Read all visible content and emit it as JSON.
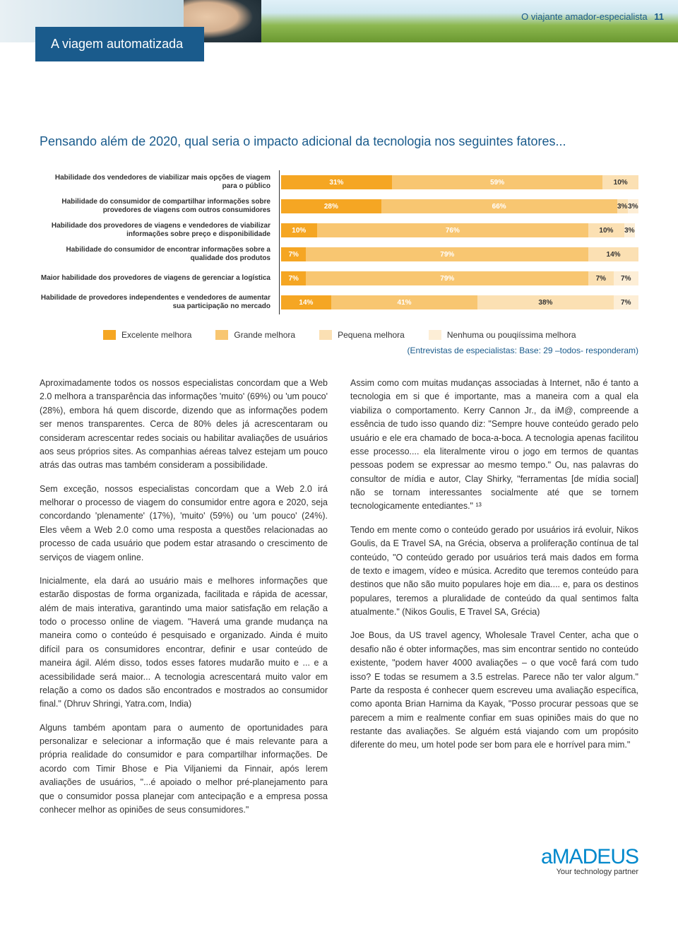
{
  "header": {
    "tab": "A viagem automatizada",
    "right_label": "O viajante amador-especialista",
    "page_number": "11"
  },
  "chart": {
    "title": "Pensando além de 2020, qual seria o impacto adicional da tecnologia nos seguintes fatores...",
    "type": "stacked-bar-horizontal",
    "colors": {
      "excellent": "#f5a623",
      "large": "#f8c671",
      "small": "#fbe0b3",
      "none": "#fdeed6"
    },
    "background_color": "#ffffff",
    "label_fontsize": 10,
    "value_fontsize": 10,
    "rows": [
      {
        "label": "Habilidade dos vendedores de viabilizar mais opções de viagem para o público",
        "segs": [
          {
            "v": 31,
            "t": "31%"
          },
          {
            "v": 59,
            "t": "59%"
          },
          {
            "v": 10,
            "t": "10%"
          }
        ]
      },
      {
        "label": "Habilidade do consumidor de compartilhar informações sobre provedores de viagens com outros consumidores",
        "segs": [
          {
            "v": 28,
            "t": "28%"
          },
          {
            "v": 66,
            "t": "66%"
          },
          {
            "v": 3,
            "t": "3%"
          },
          {
            "v": 3,
            "t": "3%"
          }
        ]
      },
      {
        "label": "Habilidade dos provedores de viagens e vendedores de viabilizar informações sobre preço e disponibilidade",
        "segs": [
          {
            "v": 10,
            "t": "10%"
          },
          {
            "v": 76,
            "t": "76%"
          },
          {
            "v": 10,
            "t": "10%"
          },
          {
            "v": 3,
            "t": "3%"
          }
        ]
      },
      {
        "label": "Habilidade do consumidor de encontrar informações sobre a qualidade dos produtos",
        "segs": [
          {
            "v": 7,
            "t": "7%"
          },
          {
            "v": 79,
            "t": "79%"
          },
          {
            "v": 14,
            "t": "14%"
          }
        ]
      },
      {
        "label": "Maior habilidade dos provedores de viagens de gerenciar a logística",
        "segs": [
          {
            "v": 7,
            "t": "7%"
          },
          {
            "v": 79,
            "t": "79%"
          },
          {
            "v": 7,
            "t": "7%"
          },
          {
            "v": 7,
            "t": "7%"
          }
        ]
      },
      {
        "label": "Habilidade de provedores independentes e vendedores de aumentar sua participação no mercado",
        "segs": [
          {
            "v": 14,
            "t": "14%"
          },
          {
            "v": 41,
            "t": "41%"
          },
          {
            "v": 38,
            "t": "38%"
          },
          {
            "v": 7,
            "t": "7%"
          }
        ]
      }
    ],
    "legend": [
      {
        "color": "#f5a623",
        "label": "Excelente melhora"
      },
      {
        "color": "#f8c671",
        "label": "Grande melhora"
      },
      {
        "color": "#fbe0b3",
        "label": "Pequena melhora"
      },
      {
        "color": "#fdeed6",
        "label": "Nenhuma ou pouqiíssima melhora"
      }
    ],
    "source": "(Entrevistas de especialistas: Base: 29 –todos- responderam)"
  },
  "body": {
    "left": [
      "Aproximadamente todos os nossos especialistas concordam que a Web 2.0 melhora a transparência das informações 'muito' (69%) ou 'um pouco' (28%), embora há quem discorde, dizendo que as informações podem ser menos transparentes. Cerca de 80% deles já acrescentaram ou consideram acrescentar redes sociais ou habilitar avaliações de usuários aos seus próprios sites.  As companhias aéreas talvez estejam um pouco atrás das outras mas também consideram a possibilidade.",
      "Sem exceção, nossos especialistas concordam que a Web 2.0 irá melhorar o processo de viagem do consumidor entre agora e 2020, seja  concordando 'plenamente' (17%), 'muito' (59%) ou 'um pouco' (24%). Eles vêem a  Web 2.0 como uma resposta a questões relacionadas ao processo de cada usuário que podem estar atrasando o crescimento de serviços de viagem online.",
      "Inicialmente, ela dará ao usuário mais e melhores informações que estarão dispostas de forma organizada, facilitada e rápida de acessar, além de mais interativa, garantindo uma maior satisfação em relação a todo o processo online de viagem. \"Haverá uma grande mudança na maneira como o conteúdo é pesquisado e organizado. Ainda é muito difícil para os consumidores encontrar, definir e usar conteúdo de maneira ágil. Além disso, todos esses fatores mudarão muito e ... e a acessibilidade será maior... A tecnologia acrescentará muito valor em  relação a como os dados são encontrados e mostrados ao consumidor final.\" (Dhruv Shringi, Yatra.com, India)",
      "Alguns também apontam para o aumento de oportunidades para personalizar e selecionar a informação que é mais relevante para a própria realidade do consumidor e para compartilhar informações. De acordo com Timir Bhose  e Pia Viljaniemi da Finnair,  após lerem avaliações de usuários, \"...é apoiado o melhor pré-planejamento para que o consumidor possa planejar com antecipação e a empresa possa conhecer melhor as opiniões de seus consumidores.\""
    ],
    "right": [
      "Assim como com muitas mudanças associadas à Internet, não é tanto a tecnologia em si que é importante, mas a maneira com a qual ela viabiliza o comportamento. Kerry Cannon Jr., da iM@, compreende a essência de tudo isso quando diz: \"Sempre houve conteúdo gerado pelo usuário e ele era chamado de boca-a-boca. A tecnologia apenas facilitou esse processo.... ela literalmente virou o jogo em termos de quantas pessoas podem se expressar ao mesmo tempo.\"  Ou, nas palavras do consultor de mídia e autor, Clay Shirky, \"ferramentas [de mídia social] não se tornam interessantes socialmente até que se tornem tecnologicamente entediantes.\" ¹³",
      "Tendo em mente como o conteúdo gerado por usuários irá evoluir, Nikos Goulis, da E Travel SA, na Grécia, observa a proliferação contínua de tal conteúdo, \"O conteúdo gerado por usuários terá mais dados em forma de texto e imagem, vídeo e música. Acredito que teremos conteúdo para destinos que não são muito populares hoje em dia.... e, para os destinos populares, teremos a pluralidade de conteúdo da qual sentimos falta atualmente.\" (Nikos Goulis, E Travel SA, Grécia)",
      "Joe Bous, da US travel agency, Wholesale Travel Center, acha que o desafio não é obter informações, mas sim encontrar sentido no conteúdo existente, \"podem haver 4000 avaliações – o que você fará com tudo isso? E todas se resumem a 3.5 estrelas. Parece não ter valor algum.\" Parte da resposta é conhecer quem escreveu uma avaliação específica, como aponta Brian Harnima da Kayak, \"Posso procurar pessoas que se parecem a mim e realmente confiar em suas opiniões mais do que no restante das avaliações. Se alguém está viajando com um propósito diferente do meu, um hotel pode ser bom para ele e horrível para mim.\""
    ]
  },
  "footer": {
    "brand": "aMaDEUS",
    "tagline": "Your technology partner"
  }
}
